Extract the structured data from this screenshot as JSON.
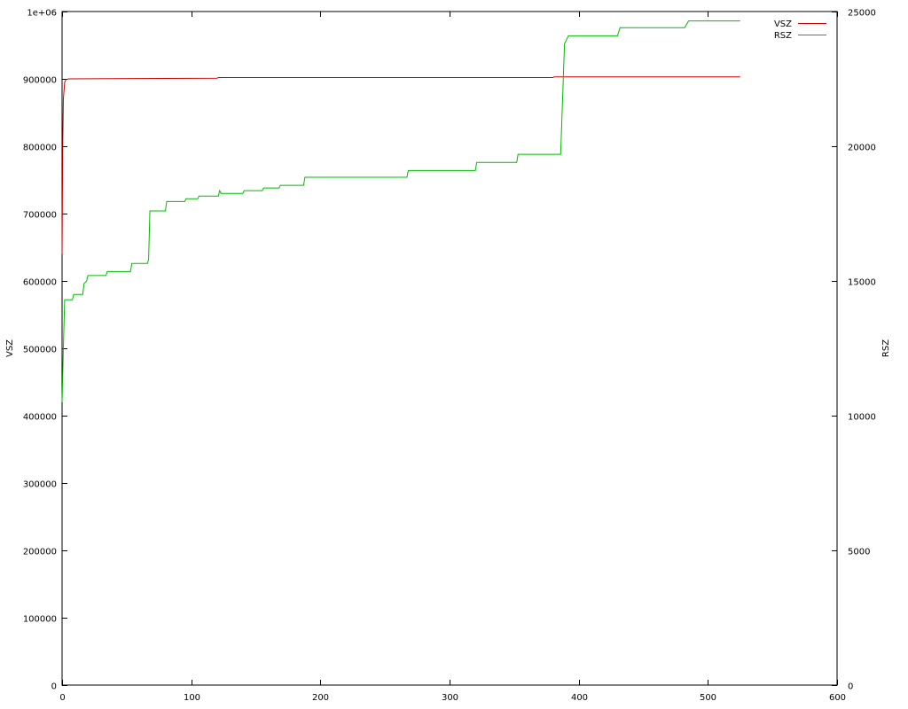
{
  "chart_data": {
    "type": "line",
    "xlabel": "",
    "ylabel": "VSZ",
    "y2label": "RSZ",
    "xlim": [
      0,
      600
    ],
    "ylim": [
      0,
      1000000
    ],
    "y2lim": [
      0,
      25000
    ],
    "x_ticks": [
      0,
      100,
      200,
      300,
      400,
      500,
      600
    ],
    "y_ticks": [
      0,
      100000,
      200000,
      300000,
      400000,
      500000,
      600000,
      700000,
      800000,
      900000,
      1000000
    ],
    "y_tick_labels": [
      "0",
      "100000",
      "200000",
      "300000",
      "400000",
      "500000",
      "600000",
      "700000",
      "800000",
      "900000",
      "1e+06"
    ],
    "y2_ticks": [
      0,
      5000,
      10000,
      15000,
      20000,
      25000
    ],
    "grid": false,
    "legend_position": "top-right",
    "series": [
      {
        "name": "VSZ",
        "axis": "y",
        "color": "#cc0000",
        "points": [
          [
            0,
            640000
          ],
          [
            0.5,
            800000
          ],
          [
            1,
            870000
          ],
          [
            2,
            895000
          ],
          [
            3,
            899000
          ],
          [
            5,
            900000
          ],
          [
            120,
            901000
          ],
          [
            121,
            902000
          ],
          [
            380,
            902000
          ],
          [
            381,
            903000
          ],
          [
            525,
            903000
          ]
        ]
      },
      {
        "name": "RSZ",
        "axis": "y2",
        "color": "#00bb00",
        "points": [
          [
            0,
            10500
          ],
          [
            1,
            12500
          ],
          [
            2,
            14300
          ],
          [
            8,
            14300
          ],
          [
            9,
            14500
          ],
          [
            16,
            14500
          ],
          [
            17,
            14900
          ],
          [
            19,
            15000
          ],
          [
            20,
            15200
          ],
          [
            34,
            15200
          ],
          [
            35,
            15350
          ],
          [
            53,
            15350
          ],
          [
            54,
            15650
          ],
          [
            66,
            15650
          ],
          [
            67,
            15800
          ],
          [
            68,
            17600
          ],
          [
            80,
            17600
          ],
          [
            81,
            17950
          ],
          [
            95,
            17950
          ],
          [
            96,
            18050
          ],
          [
            105,
            18050
          ],
          [
            106,
            18150
          ],
          [
            121,
            18150
          ],
          [
            122,
            18350
          ],
          [
            123,
            18250
          ],
          [
            140,
            18250
          ],
          [
            141,
            18350
          ],
          [
            155,
            18350
          ],
          [
            156,
            18450
          ],
          [
            168,
            18450
          ],
          [
            169,
            18550
          ],
          [
            187,
            18550
          ],
          [
            188,
            18850
          ],
          [
            267,
            18850
          ],
          [
            268,
            19100
          ],
          [
            320,
            19100
          ],
          [
            321,
            19400
          ],
          [
            352,
            19400
          ],
          [
            353,
            19700
          ],
          [
            386,
            19700
          ],
          [
            389,
            23800
          ],
          [
            392,
            24100
          ],
          [
            430,
            24100
          ],
          [
            432,
            24400
          ],
          [
            482,
            24400
          ],
          [
            485,
            24650
          ],
          [
            525,
            24650
          ]
        ]
      }
    ]
  }
}
